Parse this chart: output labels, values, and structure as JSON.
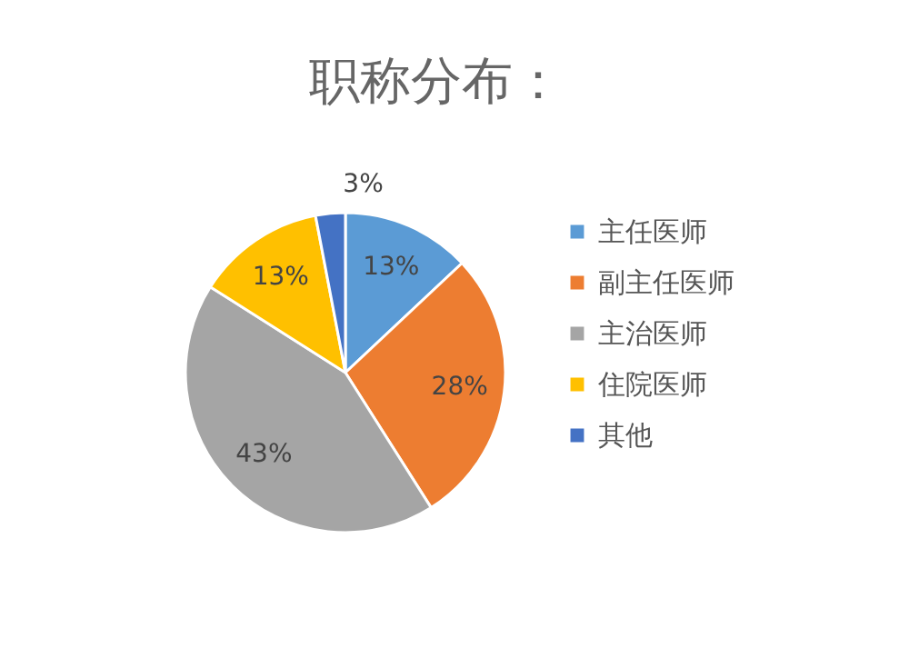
{
  "chart_data": {
    "type": "pie",
    "title": "职称分布：",
    "categories": [
      "主任医师",
      "副主任医师",
      "主治医师",
      "住院医师",
      "其他"
    ],
    "values": [
      13,
      28,
      43,
      13,
      3
    ],
    "value_labels": [
      "13%",
      "28%",
      "43%",
      "13%",
      "3%"
    ],
    "colors": [
      "#5b9bd5",
      "#ed7d31",
      "#a5a5a5",
      "#ffc000",
      "#4472c4"
    ],
    "legend": "right"
  }
}
